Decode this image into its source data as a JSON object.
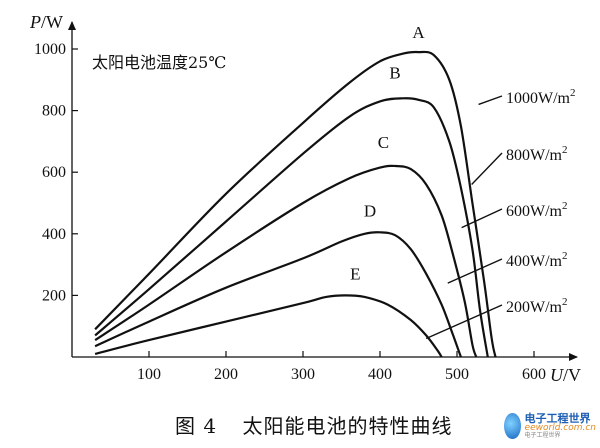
{
  "chart_data": {
    "type": "line",
    "xlabel_var": "U",
    "xlabel_unit": "/V",
    "ylabel_var": "P",
    "ylabel_unit": "/W",
    "xlim": [
      0,
      620
    ],
    "ylim": [
      0,
      1050
    ],
    "xticks": [
      100,
      200,
      300,
      400,
      500,
      600
    ],
    "yticks": [
      200,
      400,
      600,
      800,
      1000
    ],
    "annotation": "太阳电池温度25℃",
    "grid": false,
    "series": [
      {
        "name": "A",
        "irradiance": "1000W/m",
        "sup": "2",
        "points": [
          [
            30,
            90
          ],
          [
            100,
            270
          ],
          [
            200,
            530
          ],
          [
            300,
            760
          ],
          [
            360,
            890
          ],
          [
            400,
            960
          ],
          [
            430,
            985
          ],
          [
            450,
            990
          ],
          [
            470,
            980
          ],
          [
            490,
            900
          ],
          [
            505,
            750
          ],
          [
            520,
            500
          ],
          [
            535,
            250
          ],
          [
            545,
            60
          ],
          [
            550,
            0
          ]
        ]
      },
      {
        "name": "B",
        "irradiance": "800W/m",
        "sup": "2",
        "points": [
          [
            30,
            70
          ],
          [
            100,
            220
          ],
          [
            200,
            440
          ],
          [
            300,
            660
          ],
          [
            360,
            780
          ],
          [
            400,
            830
          ],
          [
            430,
            840
          ],
          [
            450,
            835
          ],
          [
            470,
            810
          ],
          [
            490,
            700
          ],
          [
            505,
            550
          ],
          [
            520,
            350
          ],
          [
            530,
            150
          ],
          [
            540,
            0
          ]
        ]
      },
      {
        "name": "C",
        "irradiance": "600W/m",
        "sup": "2",
        "points": [
          [
            30,
            55
          ],
          [
            100,
            170
          ],
          [
            200,
            340
          ],
          [
            300,
            500
          ],
          [
            360,
            580
          ],
          [
            400,
            615
          ],
          [
            420,
            620
          ],
          [
            440,
            610
          ],
          [
            460,
            560
          ],
          [
            480,
            460
          ],
          [
            495,
            330
          ],
          [
            510,
            180
          ],
          [
            520,
            40
          ],
          [
            525,
            0
          ]
        ]
      },
      {
        "name": "D",
        "irradiance": "400W/m",
        "sup": "2",
        "points": [
          [
            30,
            35
          ],
          [
            100,
            115
          ],
          [
            200,
            225
          ],
          [
            300,
            320
          ],
          [
            350,
            375
          ],
          [
            380,
            400
          ],
          [
            400,
            405
          ],
          [
            420,
            395
          ],
          [
            440,
            350
          ],
          [
            460,
            270
          ],
          [
            480,
            170
          ],
          [
            495,
            70
          ],
          [
            505,
            0
          ]
        ]
      },
      {
        "name": "E",
        "irradiance": "200W/m",
        "sup": "2",
        "points": [
          [
            30,
            10
          ],
          [
            100,
            55
          ],
          [
            200,
            115
          ],
          [
            300,
            175
          ],
          [
            330,
            195
          ],
          [
            355,
            200
          ],
          [
            380,
            195
          ],
          [
            410,
            170
          ],
          [
            440,
            120
          ],
          [
            460,
            70
          ],
          [
            475,
            20
          ],
          [
            480,
            0
          ]
        ]
      }
    ]
  },
  "caption": {
    "figure_no": "图 4",
    "title": "太阳能电池的特性曲线"
  },
  "watermark": {
    "cn": "电子工程世界",
    "en": "eeworld.com.cn",
    "sub": "电子工程世界"
  }
}
